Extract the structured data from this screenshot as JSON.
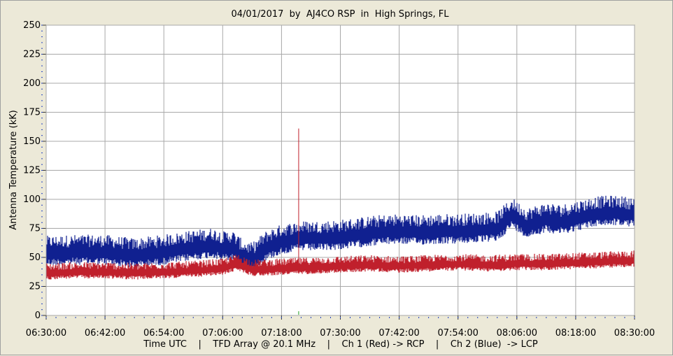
{
  "chart_data": {
    "type": "line",
    "title": "04/01/2017  by  AJ4CO RSP  in  High Springs, FL",
    "ylabel": "Antenna Temperature (kK)",
    "xlabel": "Time UTC    |    TFD Array @ 20.1 MHz    |    Ch 1 (Red) -> RCP    |    Ch 2 (Blue)  -> LCP",
    "ylim": [
      0,
      250
    ],
    "y_ticks": [
      "0",
      "25",
      "50",
      "75",
      "100",
      "125",
      "150",
      "175",
      "200",
      "225",
      "250"
    ],
    "x_ticks": [
      "06:30:00",
      "06:42:00",
      "06:54:00",
      "07:06:00",
      "07:18:00",
      "07:30:00",
      "07:42:00",
      "07:54:00",
      "08:06:00",
      "08:18:00",
      "08:30:00"
    ],
    "grid": true,
    "series": [
      {
        "name": "Ch 1 (Red)",
        "color": "#c0202c",
        "x": [
          "06:30",
          "06:36",
          "06:42",
          "06:48",
          "06:54",
          "07:00",
          "07:06",
          "07:09",
          "07:12",
          "07:18",
          "07:24",
          "07:30",
          "07:36",
          "07:42",
          "07:48",
          "07:54",
          "08:00",
          "08:06",
          "08:12",
          "08:18",
          "08:24",
          "08:30"
        ],
        "values": [
          36,
          37,
          37,
          36,
          37,
          38,
          40,
          44,
          39,
          40,
          41,
          42,
          43,
          42,
          43,
          44,
          43,
          44,
          44,
          45,
          46,
          47
        ],
        "noise": [
          4,
          7
        ]
      },
      {
        "name": "Ch 2 (Blue)",
        "color": "#102090",
        "x": [
          "06:30",
          "06:36",
          "06:42",
          "06:48",
          "06:54",
          "07:00",
          "07:04",
          "07:06",
          "07:08",
          "07:10",
          "07:12",
          "07:15",
          "07:18",
          "07:22",
          "07:26",
          "07:30",
          "07:34",
          "07:38",
          "07:42",
          "07:46",
          "07:50",
          "07:54",
          "07:58",
          "08:02",
          "08:05",
          "08:08",
          "08:12",
          "08:15",
          "08:18",
          "08:22",
          "08:26",
          "08:30"
        ],
        "values": [
          53,
          54,
          54,
          51,
          54,
          58,
          60,
          57,
          58,
          50,
          47,
          58,
          63,
          66,
          66,
          67,
          69,
          71,
          72,
          71,
          72,
          72,
          73,
          74,
          86,
          77,
          82,
          80,
          83,
          87,
          88,
          86
        ],
        "noise": [
          8,
          12
        ]
      }
    ],
    "annotations": [
      {
        "series": "Ch 1 (Red)",
        "x": "07:21:30",
        "y": 161,
        "type": "spike"
      }
    ]
  }
}
